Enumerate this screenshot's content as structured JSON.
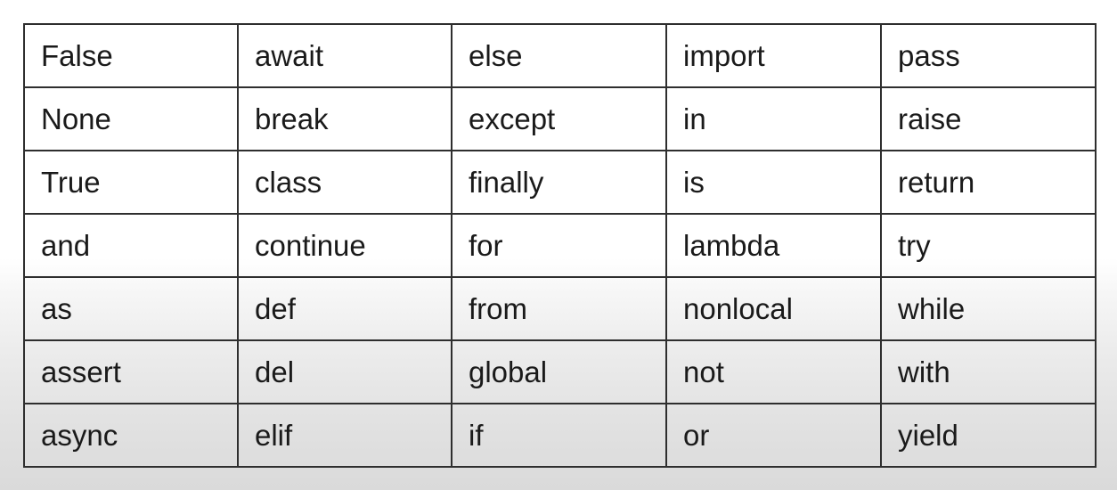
{
  "keywords_table": {
    "rows": [
      [
        "False",
        "await",
        "else",
        "import",
        "pass"
      ],
      [
        "None",
        "break",
        "except",
        "in",
        "raise"
      ],
      [
        "True",
        "class",
        "finally",
        "is",
        "return"
      ],
      [
        "and",
        "continue",
        "for",
        "lambda",
        "try"
      ],
      [
        "as",
        "def",
        "from",
        "nonlocal",
        "while"
      ],
      [
        "assert",
        "del",
        "global",
        "not",
        "with"
      ],
      [
        "async",
        "elif",
        "if",
        "or",
        "yield"
      ]
    ]
  }
}
